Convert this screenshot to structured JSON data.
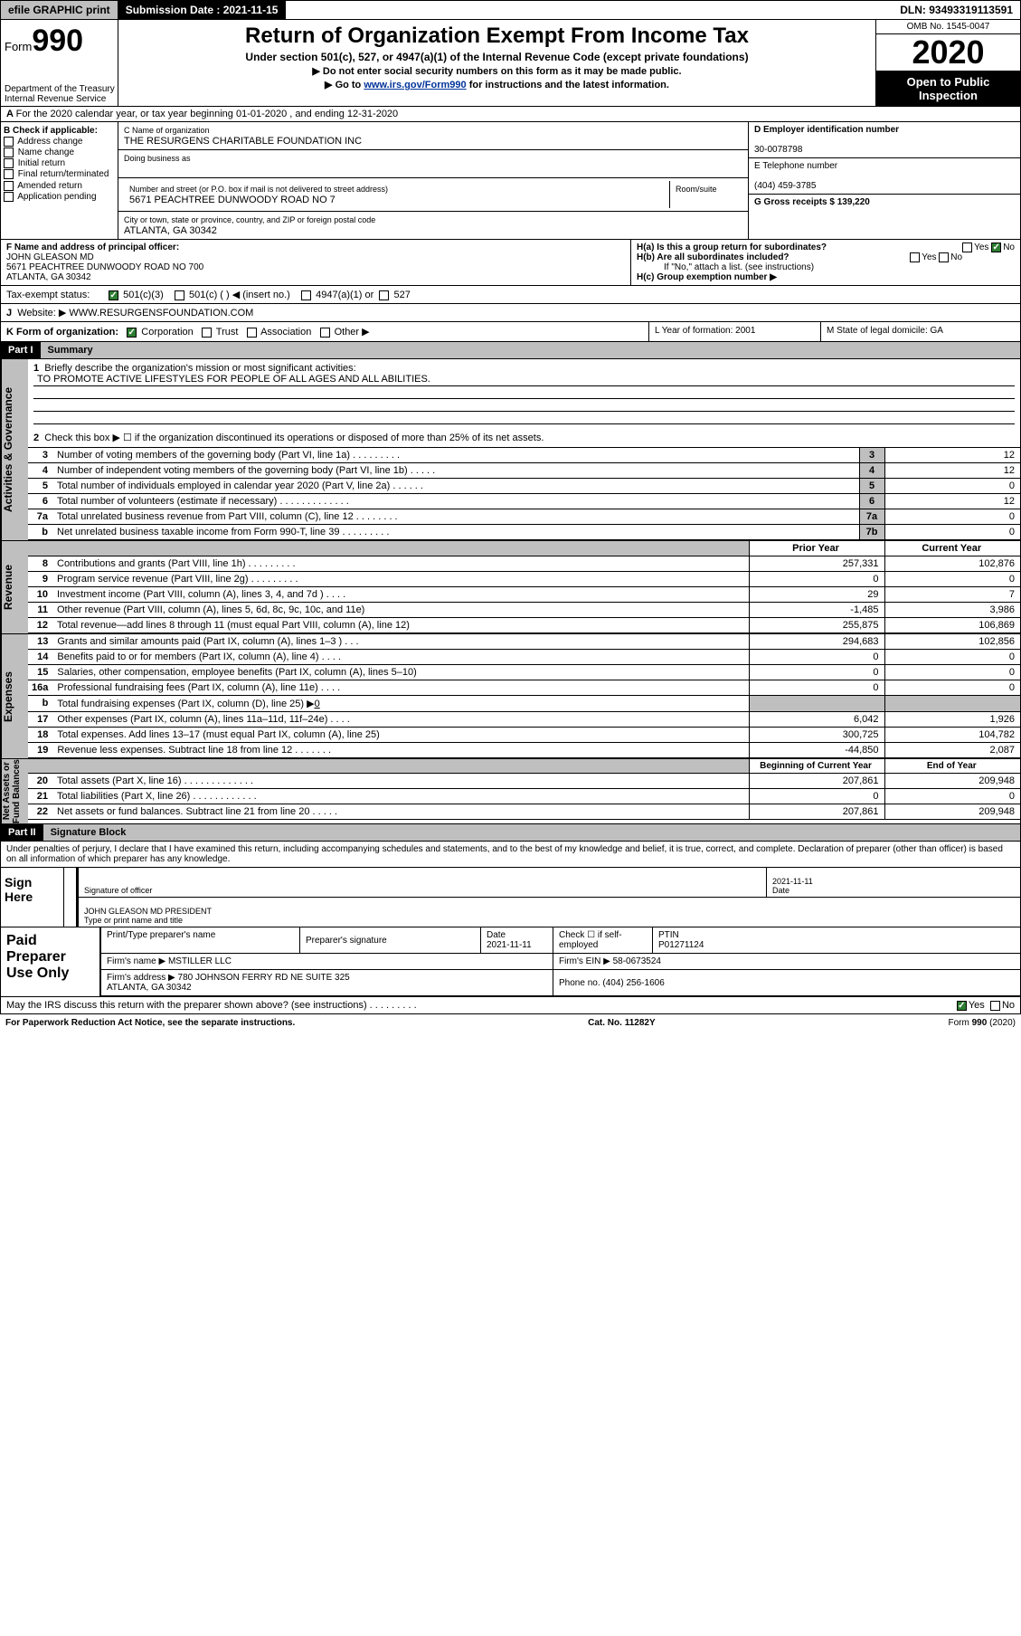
{
  "topbar": {
    "efile": "efile GRAPHIC print",
    "submission_label": "Submission Date : 2021-11-15",
    "dln_label": "DLN: 93493319113591"
  },
  "header": {
    "form_prefix": "Form",
    "form_no": "990",
    "title": "Return of Organization Exempt From Income Tax",
    "subtitle": "Under section 501(c), 527, or 4947(a)(1) of the Internal Revenue Code (except private foundations)",
    "dne": "Do not enter social security numbers on this form as it may be made public.",
    "goto_pre": "Go to ",
    "goto_link": "www.irs.gov/Form990",
    "goto_post": " for instructions and the latest information.",
    "dept": "Department of the Treasury\nInternal Revenue Service",
    "omb": "OMB No. 1545-0047",
    "year": "2020",
    "otp": "Open to Public Inspection"
  },
  "lineA": "For the 2020 calendar year, or tax year beginning 01-01-2020   , and ending 12-31-2020",
  "boxB": {
    "hdr": "B Check if applicable:",
    "items": [
      "Address change",
      "Name change",
      "Initial return",
      "Final return/terminated",
      "Amended return",
      "Application pending"
    ]
  },
  "boxC": {
    "name_lbl": "C Name of organization",
    "name": "THE RESURGENS CHARITABLE FOUNDATION INC",
    "dba_lbl": "Doing business as",
    "addr_lbl": "Number and street (or P.O. box if mail is not delivered to street address)",
    "room_lbl": "Room/suite",
    "addr": "5671 PEACHTREE DUNWOODY ROAD NO 7",
    "city_lbl": "City or town, state or province, country, and ZIP or foreign postal code",
    "city": "ATLANTA, GA  30342"
  },
  "boxD": {
    "lbl": "D Employer identification number",
    "val": "30-0078798"
  },
  "boxE": {
    "lbl": "E Telephone number",
    "val": "(404) 459-3785"
  },
  "boxG": {
    "lbl": "G Gross receipts $ 139,220"
  },
  "boxF": {
    "lbl": "F  Name and address of principal officer:",
    "name": "JOHN GLEASON MD",
    "addr": "5671 PEACHTREE DUNWOODY ROAD NO 700\nATLANTA, GA  30342"
  },
  "boxH": {
    "a_lbl": "H(a)  Is this a group return for subordinates?",
    "b_lbl": "H(b)  Are all subordinates included?",
    "note": "If \"No,\" attach a list. (see instructions)",
    "c_lbl": "H(c)  Group exemption number ▶",
    "yes": "Yes",
    "no": "No"
  },
  "tax": {
    "lbl": "Tax-exempt status:",
    "o1": "501(c)(3)",
    "o2": "501(c) (  ) ◀ (insert no.)",
    "o3": "4947(a)(1) or",
    "o4": "527"
  },
  "boxJ": {
    "lbl": "J",
    "txt": "Website: ▶   WWW.RESURGENSFOUNDATION.COM"
  },
  "boxK": {
    "lbl": "K Form of organization:",
    "corp": "Corporation",
    "trust": "Trust",
    "assoc": "Association",
    "other": "Other ▶"
  },
  "boxL": {
    "lbl": "L Year of formation: 2001"
  },
  "boxM": {
    "lbl": "M State of legal domicile: GA"
  },
  "partI": {
    "hdr": "Part I",
    "title": "Summary"
  },
  "side_gov": "Activities & Governance",
  "side_rev": "Revenue",
  "side_exp": "Expenses",
  "side_net": "Net Assets or\nFund Balances",
  "l1": {
    "num": "1",
    "txt": "Briefly describe the organization's mission or most significant activities:",
    "mission": "TO PROMOTE ACTIVE LIFESTYLES FOR PEOPLE OF ALL AGES AND ALL ABILITIES."
  },
  "l2": {
    "num": "2",
    "txt": "Check this box ▶ ☐  if the organization discontinued its operations or disposed of more than 25% of its net assets."
  },
  "rows_gov": [
    {
      "n": "3",
      "t": "Number of voting members of the governing body (Part VI, line 1a)   .   .   .   .   .   .   .   .   .",
      "b": "3",
      "v": "12"
    },
    {
      "n": "4",
      "t": "Number of independent voting members of the governing body (Part VI, line 1b)   .   .   .   .   .",
      "b": "4",
      "v": "12"
    },
    {
      "n": "5",
      "t": "Total number of individuals employed in calendar year 2020 (Part V, line 2a)   .   .   .   .   .   .",
      "b": "5",
      "v": "0"
    },
    {
      "n": "6",
      "t": "Total number of volunteers (estimate if necessary)   .   .   .   .   .   .   .   .   .   .   .   .   .",
      "b": "6",
      "v": "12"
    },
    {
      "n": "7a",
      "t": "Total unrelated business revenue from Part VIII, column (C), line 12   .   .   .   .   .   .   .   .",
      "b": "7a",
      "v": "0"
    },
    {
      "n": "b",
      "t": "Net unrelated business taxable income from Form 990-T, line 39   .   .   .   .   .   .   .   .   .",
      "b": "7b",
      "v": "0"
    }
  ],
  "pyhdr": {
    "py": "Prior Year",
    "cy": "Current Year"
  },
  "rows_rev": [
    {
      "n": "8",
      "t": "Contributions and grants (Part VIII, line 1h)   .   .   .   .   .   .   .   .   .",
      "py": "257,331",
      "cy": "102,876"
    },
    {
      "n": "9",
      "t": "Program service revenue (Part VIII, line 2g)   .   .   .   .   .   .   .   .   .",
      "py": "0",
      "cy": "0"
    },
    {
      "n": "10",
      "t": "Investment income (Part VIII, column (A), lines 3, 4, and 7d )   .   .   .   .",
      "py": "29",
      "cy": "7"
    },
    {
      "n": "11",
      "t": "Other revenue (Part VIII, column (A), lines 5, 6d, 8c, 9c, 10c, and 11e)",
      "py": "-1,485",
      "cy": "3,986"
    },
    {
      "n": "12",
      "t": "Total revenue—add lines 8 through 11 (must equal Part VIII, column (A), line 12)",
      "py": "255,875",
      "cy": "106,869"
    }
  ],
  "rows_exp": [
    {
      "n": "13",
      "t": "Grants and similar amounts paid (Part IX, column (A), lines 1–3 )   .   .   .",
      "py": "294,683",
      "cy": "102,856"
    },
    {
      "n": "14",
      "t": "Benefits paid to or for members (Part IX, column (A), line 4)   .   .   .   .",
      "py": "0",
      "cy": "0"
    },
    {
      "n": "15",
      "t": "Salaries, other compensation, employee benefits (Part IX, column (A), lines 5–10)",
      "py": "0",
      "cy": "0"
    },
    {
      "n": "16a",
      "t": "Professional fundraising fees (Part IX, column (A), line 11e)   .   .   .   .",
      "py": "0",
      "cy": "0"
    },
    {
      "n": "b",
      "t_html": "Total fundraising expenses (Part IX, column (D), line 25) ▶<u>0</u>",
      "py": "",
      "cy": "",
      "shade": true
    },
    {
      "n": "17",
      "t": "Other expenses (Part IX, column (A), lines 11a–11d, 11f–24e)   .   .   .   .",
      "py": "6,042",
      "cy": "1,926"
    },
    {
      "n": "18",
      "t": "Total expenses. Add lines 13–17 (must equal Part IX, column (A), line 25)",
      "py": "300,725",
      "cy": "104,782"
    },
    {
      "n": "19",
      "t": "Revenue less expenses. Subtract line 18 from line 12  .   .   .   .   .   .   .",
      "py": "-44,850",
      "cy": "2,087"
    }
  ],
  "nethdr": {
    "py": "Beginning of Current Year",
    "cy": "End of Year"
  },
  "rows_net": [
    {
      "n": "20",
      "t": "Total assets (Part X, line 16)   .   .   .   .   .   .   .   .   .   .   .   .   .",
      "py": "207,861",
      "cy": "209,948"
    },
    {
      "n": "21",
      "t": "Total liabilities (Part X, line 26)   .   .   .   .   .   .   .   .   .   .   .   .",
      "py": "0",
      "cy": "0"
    },
    {
      "n": "22",
      "t": "Net assets or fund balances. Subtract line 21 from line 20  .   .   .   .   .",
      "py": "207,861",
      "cy": "209,948"
    }
  ],
  "partII": {
    "hdr": "Part II",
    "title": "Signature Block"
  },
  "penalties": "Under penalties of perjury, I declare that I have examined this return, including accompanying schedules and statements, and to the best of my knowledge and belief, it is true, correct, and complete. Declaration of preparer (other than officer) is based on all information of which preparer has any knowledge.",
  "sign": {
    "here": "Sign\nHere",
    "sig_lbl": "Signature of officer",
    "date_lbl": "Date",
    "date": "2021-11-11",
    "name": "JOHN GLEASON MD PRESIDENT",
    "name_lbl": "Type or print name and title"
  },
  "prep": {
    "here": "Paid\nPreparer\nUse Only",
    "c1": "Print/Type preparer's name",
    "c2": "Preparer's signature",
    "c3": "Date",
    "c3v": "2021-11-11",
    "c4": "Check ☐ if self-employed",
    "c5": "PTIN",
    "c5v": "P01271124",
    "r2a": "Firm's name    ▶  MSTILLER LLC",
    "r2b": "Firm's EIN ▶ 58-0673524",
    "r3a": "Firm's address ▶ 780 JOHNSON FERRY RD NE SUITE 325\n                          ATLANTA, GA  30342",
    "r3b": "Phone no. (404) 256-1606"
  },
  "discuss": {
    "q": "May the IRS discuss this return with the preparer shown above? (see instructions)   .   .   .   .   .   .   .   .   .",
    "yes": "Yes",
    "no": "No"
  },
  "foot": {
    "l": "For Paperwork Reduction Act Notice, see the separate instructions.",
    "m": "Cat. No. 11282Y",
    "r": "Form 990 (2020)"
  }
}
